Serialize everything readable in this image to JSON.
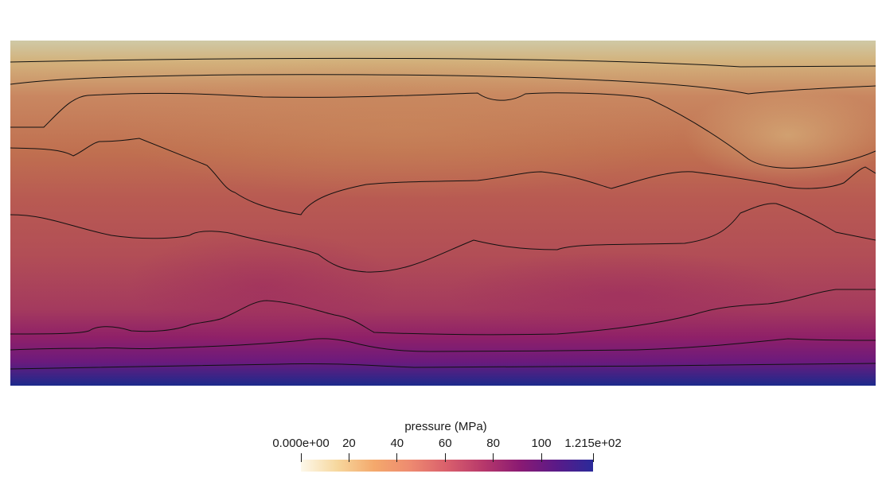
{
  "colorbar": {
    "title": "pressure (MPa)",
    "min": 0,
    "max": 121.5,
    "ticks": [
      {
        "value": 0,
        "label": "0.000e+00"
      },
      {
        "value": 20,
        "label": "20"
      },
      {
        "value": 40,
        "label": "40"
      },
      {
        "value": 60,
        "label": "60"
      },
      {
        "value": 80,
        "label": "80"
      },
      {
        "value": 100,
        "label": "100"
      },
      {
        "value": 121.5,
        "label": "1.215e+02"
      }
    ],
    "colormap": [
      "#fdf8ea",
      "#f6d79d",
      "#f4a96c",
      "#ee8a70",
      "#d95f6c",
      "#b7386b",
      "#8a1a73",
      "#5a1a88",
      "#2a2a9a"
    ]
  },
  "field": {
    "colors": {
      "top": "#cfc9a6",
      "band1": "#d7ad74",
      "band2": "#c27a55",
      "band3": "#b95c50",
      "band4": "#b34f55",
      "band5": "#a93a5a",
      "band6": "#8f1f6a",
      "band7": "#6a1a7e",
      "bottom": "#1c2a8c"
    }
  }
}
